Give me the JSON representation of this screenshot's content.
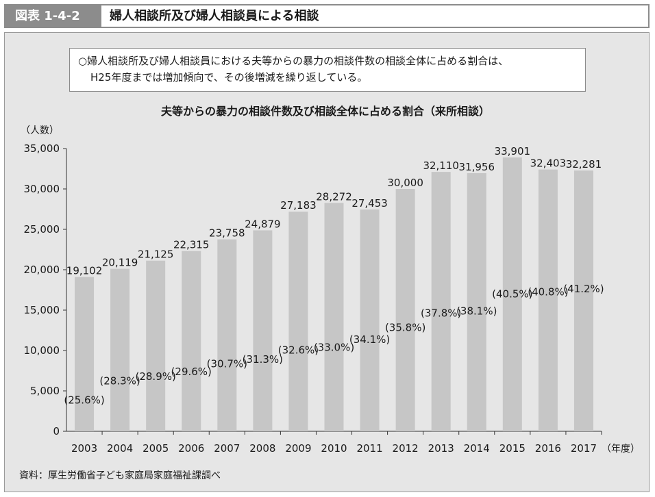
{
  "header": {
    "figure_no": "図表 1-4-2",
    "title": "婦人相談所及び婦人相談員による相談"
  },
  "summary": {
    "line1": "○婦人相談所及び婦人相談員における夫等からの暴力の相談件数の相談全体に占める割合は、",
    "line2": "H25年度までは増加傾向で、その後増減を繰り返している。"
  },
  "source": "資料：厚生労働省子ども家庭局家庭福祉課調べ",
  "colors": {
    "bar": "#c6c6c6",
    "panel": "#e6e6e6",
    "tag": "#8c8c8c"
  },
  "chart_data": {
    "type": "bar",
    "title": "夫等からの暴力の相談件数及び相談全体に占める割合（来所相談）",
    "ylabel": "（人数）",
    "xlabel": "（年度）",
    "ylim": [
      0,
      35000
    ],
    "yticks": [
      0,
      5000,
      10000,
      15000,
      20000,
      25000,
      30000,
      35000
    ],
    "ytick_labels": [
      "0",
      "5,000",
      "10,000",
      "15,000",
      "20,000",
      "25,000",
      "30,000",
      "35,000"
    ],
    "categories": [
      "2003",
      "2004",
      "2005",
      "2006",
      "2007",
      "2008",
      "2009",
      "2010",
      "2011",
      "2012",
      "2013",
      "2014",
      "2015",
      "2016",
      "2017"
    ],
    "values": [
      19102,
      20119,
      21125,
      22315,
      23758,
      24879,
      27183,
      28272,
      27453,
      30000,
      32110,
      31956,
      33901,
      32403,
      32281
    ],
    "value_labels": [
      "19,102",
      "20,119",
      "21,125",
      "22,315",
      "23,758",
      "24,879",
      "27,183",
      "28,272",
      "27,453",
      "30,000",
      "32,110",
      "31,956",
      "33,901",
      "32,403",
      "32,281"
    ],
    "percentages": [
      25.6,
      28.3,
      28.9,
      29.6,
      30.7,
      31.3,
      32.6,
      33.0,
      34.1,
      35.8,
      37.8,
      38.1,
      40.5,
      40.8,
      41.2
    ],
    "percentage_labels": [
      "(25.6%)",
      "(28.3%)",
      "(28.9%)",
      "(29.6%)",
      "(30.7%)",
      "(31.3%)",
      "(32.6%)",
      "(33.0%)",
      "(34.1%)",
      "(35.8%)",
      "(37.8%)",
      "(38.1%)",
      "(40.5%)",
      "(40.8%)",
      "(41.2%)"
    ],
    "grid": false,
    "legend": "none"
  }
}
